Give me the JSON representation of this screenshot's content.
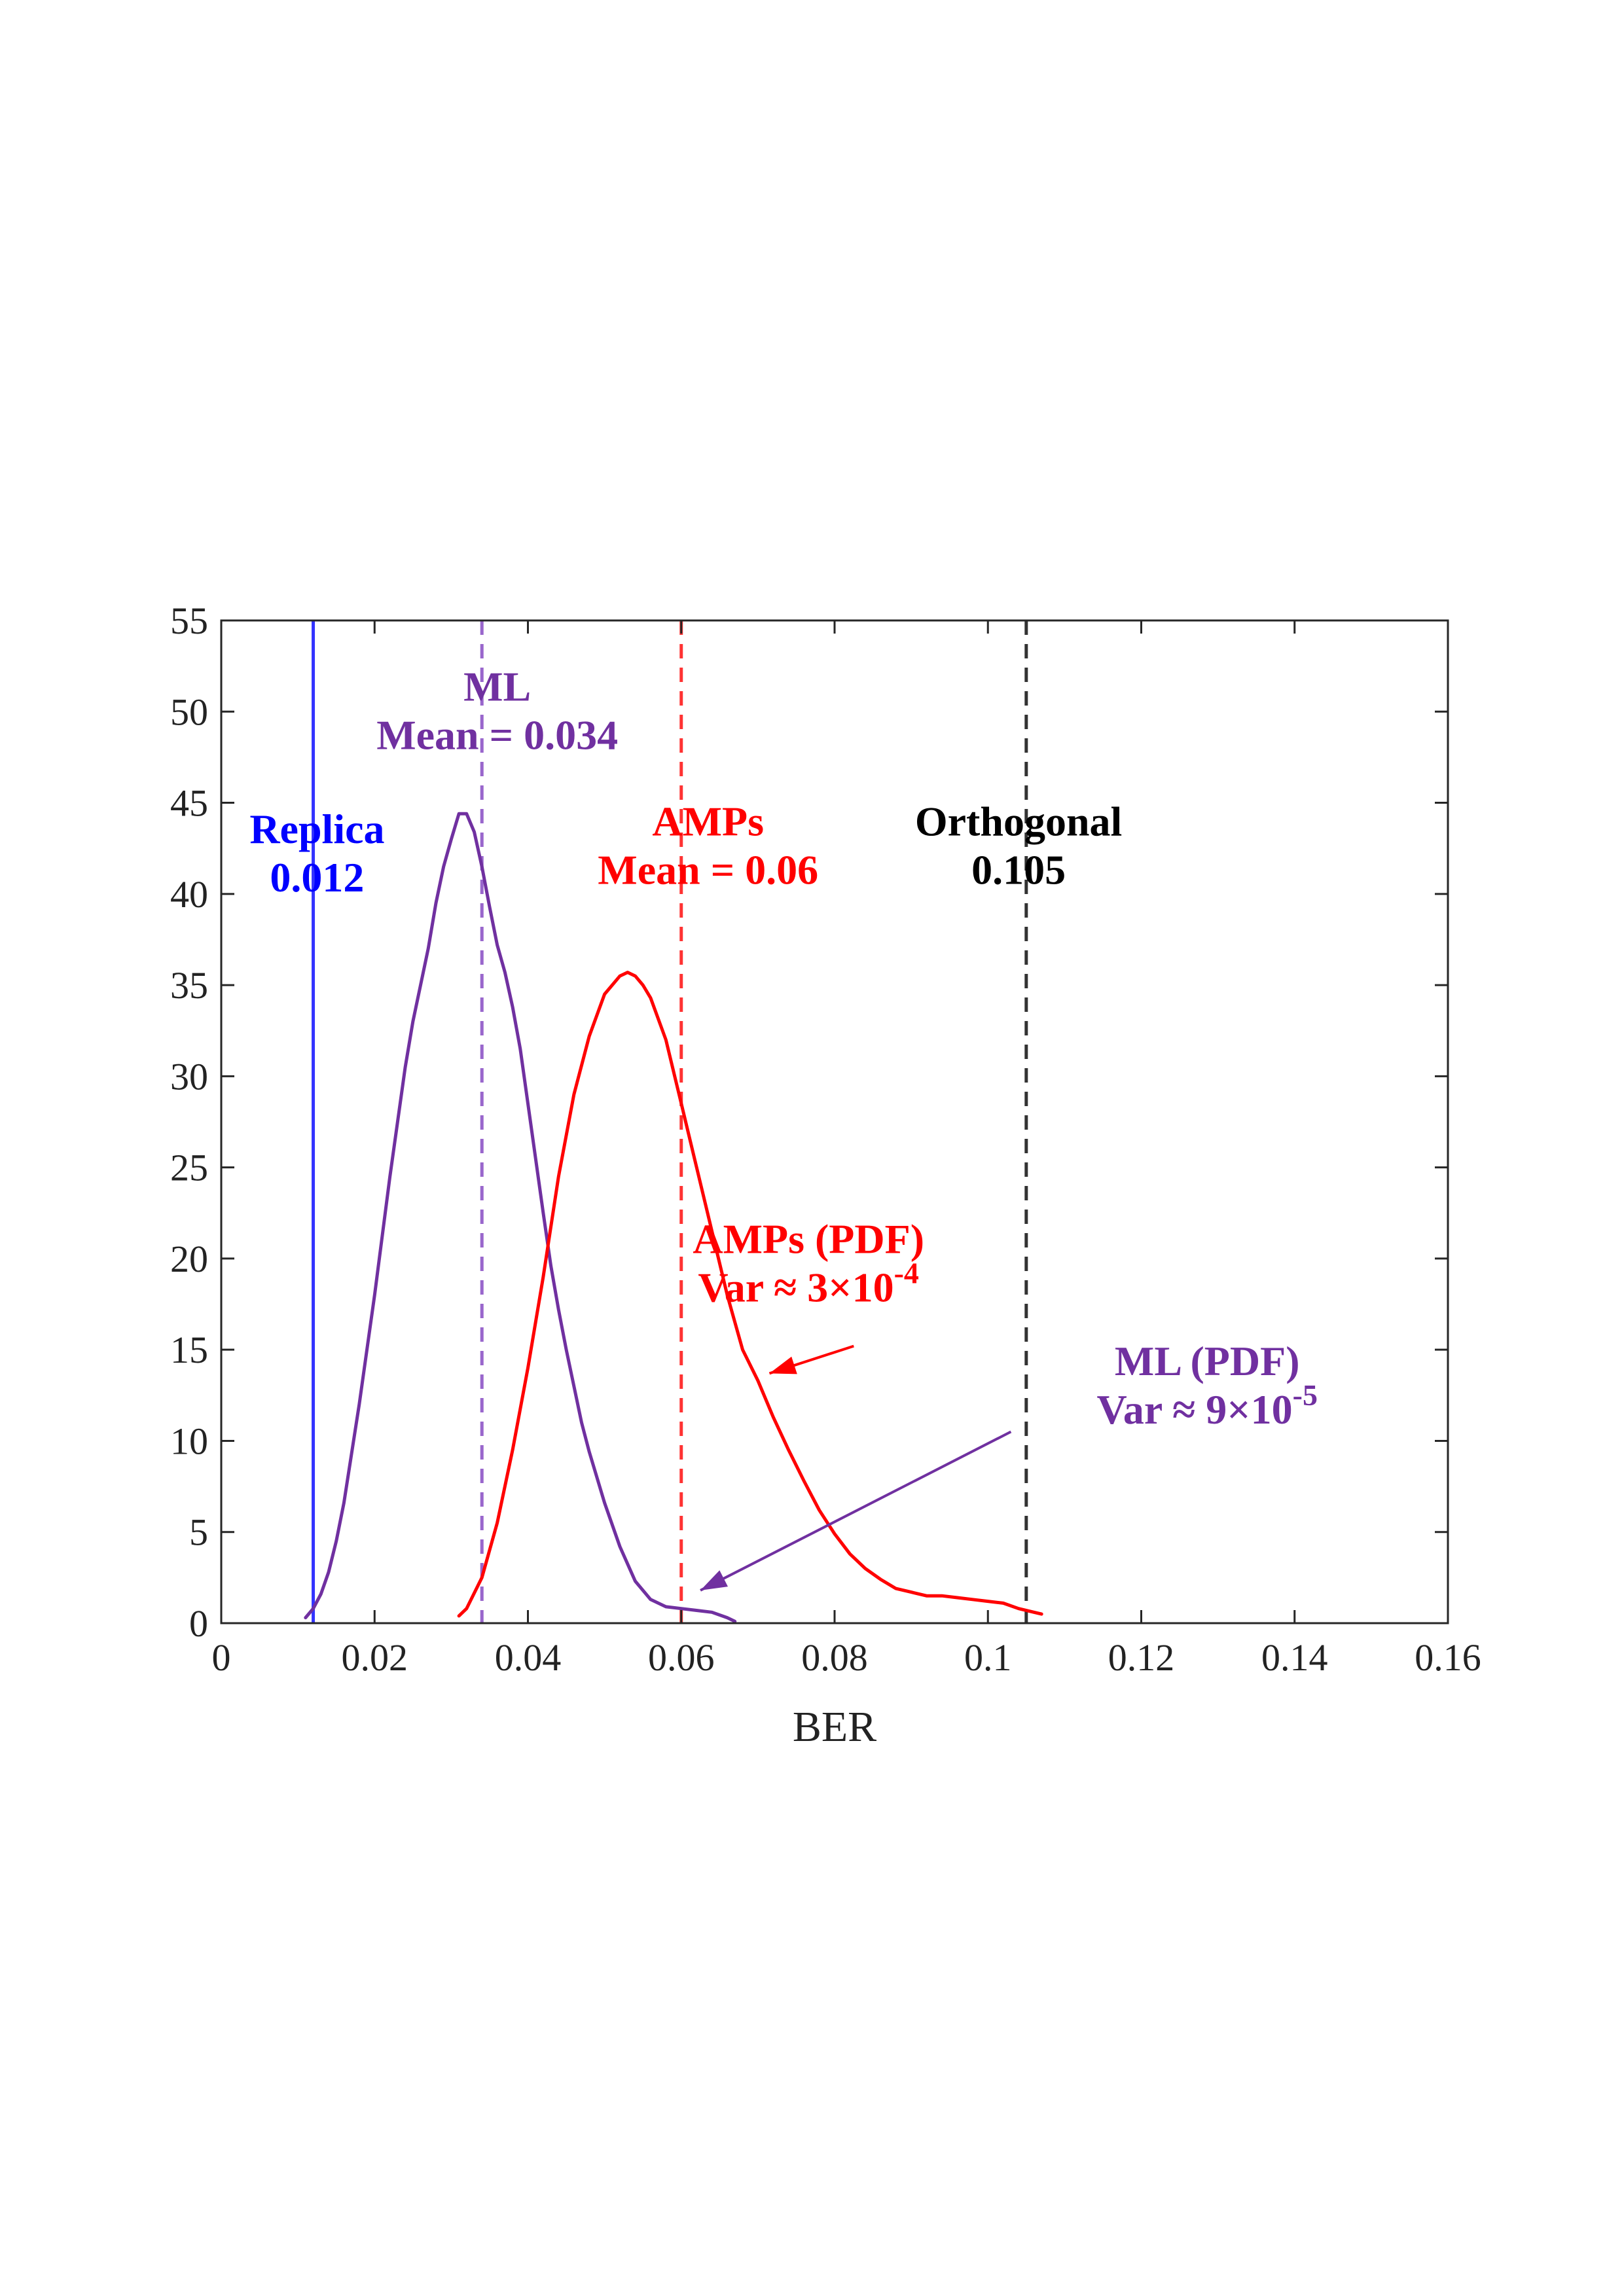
{
  "chart_data": {
    "type": "line",
    "title": "",
    "xlabel": "BER",
    "ylabel": "",
    "xlim": [
      0,
      0.16
    ],
    "ylim": [
      0,
      55
    ],
    "xticks": [
      0,
      0.02,
      0.04,
      0.06,
      0.08,
      0.1,
      0.12,
      0.14,
      0.16
    ],
    "xtick_labels": [
      "0",
      "0.02",
      "0.04",
      "0.06",
      "0.08",
      "0.1",
      "0.12",
      "0.14",
      "0.16"
    ],
    "yticks": [
      0,
      5,
      10,
      15,
      20,
      25,
      30,
      35,
      40,
      45,
      50,
      55
    ],
    "ytick_labels": [
      "0",
      "5",
      "10",
      "15",
      "20",
      "25",
      "30",
      "35",
      "40",
      "45",
      "50",
      "55"
    ],
    "grid": false,
    "series": [
      {
        "color": "#7030A0",
        "x": [
          0.011,
          0.012,
          0.013,
          0.014,
          0.015,
          0.016,
          0.018,
          0.02,
          0.022,
          0.024,
          0.025,
          0.026,
          0.027,
          0.028,
          0.029,
          0.03,
          0.031,
          0.032,
          0.033,
          0.034,
          0.035,
          0.036,
          0.037,
          0.038,
          0.039,
          0.04,
          0.041,
          0.042,
          0.043,
          0.044,
          0.045,
          0.046,
          0.047,
          0.048,
          0.05,
          0.052,
          0.054,
          0.056,
          0.058,
          0.06,
          0.062,
          0.064,
          0.066,
          0.067
        ],
        "y": [
          0.3,
          0.8,
          1.6,
          2.8,
          4.5,
          6.6,
          12,
          18,
          24.5,
          30.5,
          33,
          35,
          37,
          39.5,
          41.5,
          43,
          44.4,
          44.4,
          43.4,
          41.5,
          39.3,
          37.2,
          35.7,
          33.8,
          31.5,
          28.5,
          25.5,
          22.5,
          19.6,
          17.2,
          15,
          13,
          11,
          9.4,
          6.6,
          4.2,
          2.3,
          1.3,
          0.9,
          0.8,
          0.7,
          0.6,
          0.3,
          0.1
        ]
      },
      {
        "color": "#FF0000",
        "x": [
          0.031,
          0.032,
          0.034,
          0.036,
          0.038,
          0.04,
          0.042,
          0.044,
          0.046,
          0.048,
          0.05,
          0.052,
          0.053,
          0.054,
          0.055,
          0.056,
          0.058,
          0.06,
          0.062,
          0.064,
          0.066,
          0.068,
          0.07,
          0.072,
          0.074,
          0.076,
          0.078,
          0.08,
          0.082,
          0.084,
          0.086,
          0.088,
          0.09,
          0.092,
          0.094,
          0.096,
          0.098,
          0.1,
          0.102,
          0.104,
          0.106,
          0.107
        ],
        "y": [
          0.4,
          0.8,
          2.5,
          5.5,
          9.5,
          14,
          19,
          24.5,
          29,
          32.2,
          34.5,
          35.5,
          35.7,
          35.5,
          35,
          34.3,
          32,
          28.5,
          25,
          21.5,
          18,
          15,
          13.3,
          11.3,
          9.5,
          7.8,
          6.2,
          4.9,
          3.8,
          3,
          2.4,
          1.9,
          1.7,
          1.5,
          1.5,
          1.4,
          1.3,
          1.2,
          1.1,
          0.8,
          0.6,
          0.5
        ]
      }
    ],
    "reference_lines": [
      {
        "x": 0.012,
        "color": "#3333FF",
        "style": "solid"
      },
      {
        "x": 0.034,
        "color": "#9966CC",
        "style": "dashed"
      },
      {
        "x": 0.06,
        "color": "#FF3333",
        "style": "dashed"
      },
      {
        "x": 0.105,
        "color": "#333333",
        "style": "dashed"
      }
    ],
    "annotations": [
      {
        "lines": [
          "Replica",
          "0.012"
        ],
        "color": "#0000FF",
        "x": 0.0125,
        "y": 42.8
      },
      {
        "lines": [
          "ML",
          "Mean = 0.034"
        ],
        "color": "#7030A0",
        "x": 0.036,
        "y": 50.6
      },
      {
        "lines": [
          "AMPs",
          "Mean = 0.06"
        ],
        "color": "#FF0000",
        "x": 0.0635,
        "y": 43.2
      },
      {
        "lines": [
          "Orthogonal",
          "0.105"
        ],
        "color": "#000000",
        "x": 0.104,
        "y": 43.2
      },
      {
        "lines": [
          "AMPs (PDF)",
          "Var ≈ 3×10^-4"
        ],
        "color": "#FF0000",
        "x": 0.0766,
        "y": 20.3
      },
      {
        "lines": [
          "ML (PDF)",
          "Var ≈ 9×10^-5"
        ],
        "color": "#7030A0",
        "x": 0.1286,
        "y": 13.6
      }
    ],
    "arrows": [
      {
        "color": "#FF0000",
        "from": [
          0.0825,
          15.2
        ],
        "to": [
          0.0715,
          13.7
        ]
      },
      {
        "color": "#7030A0",
        "from": [
          0.103,
          10.5
        ],
        "to": [
          0.0625,
          1.8
        ]
      }
    ]
  }
}
